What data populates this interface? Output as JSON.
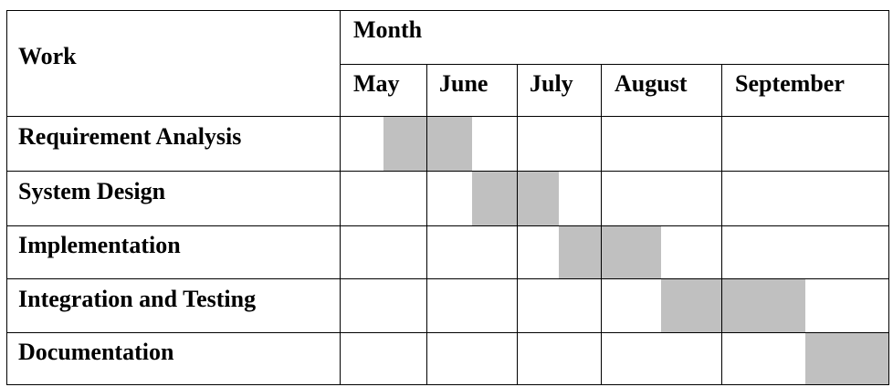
{
  "table": {
    "work_header": "Work",
    "month_header": "Month",
    "months": [
      "May",
      "June",
      "July",
      "August",
      "September"
    ],
    "tasks": [
      {
        "name": "Requirement Analysis",
        "start": "Mid May",
        "end": "End of June"
      },
      {
        "name": "System Design",
        "start": "July",
        "end": "Mid July"
      },
      {
        "name": "Implementation",
        "start": "Mid July",
        "end": "Mid August"
      },
      {
        "name": "Integration and Testing",
        "start": "Mid August",
        "end": "Late September"
      },
      {
        "name": "Documentation",
        "start": "Late September",
        "end": "End of September"
      }
    ],
    "bar_color": "#c0c0c0",
    "line_color": "#000000"
  }
}
